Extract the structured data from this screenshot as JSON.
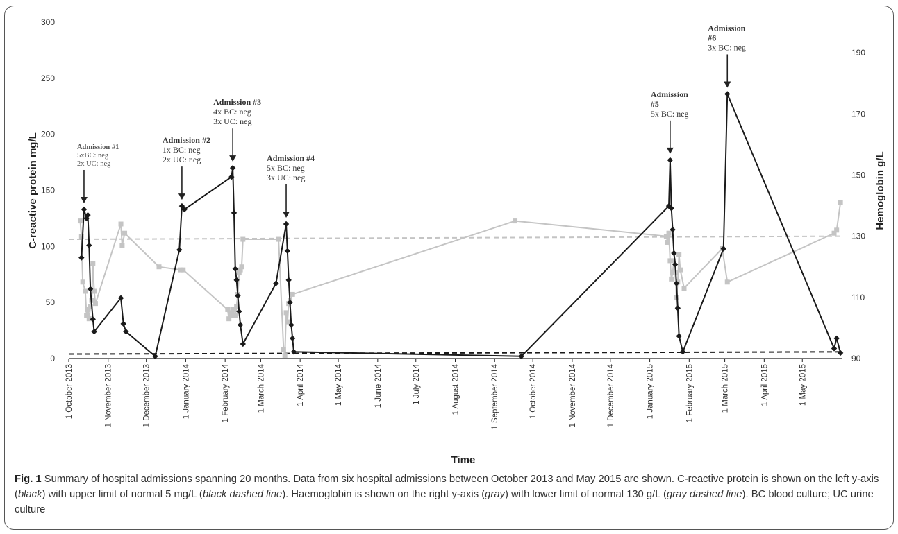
{
  "chart_data": {
    "type": "line",
    "xlabel": "Time",
    "ylabel_left": "C-reactive protein mg/L",
    "ylabel_right": "Hemoglobin g/L",
    "x_range": [
      "2013-10-01",
      "2015-06-01"
    ],
    "x_tick_labels": [
      "1 October 2013",
      "1 November 2013",
      "1 December 2013",
      "1 January 2014",
      "1 February 2014",
      "1 March 2014",
      "1 April 2014",
      "1 May 2014",
      "1 June 2014",
      "1 July 2014",
      "1 August 2014",
      "1 September 2014",
      "1 October 2014",
      "1 November 2014",
      "1 December 2014",
      "1 January 2015",
      "1 February 2015",
      "1 March 2015",
      "1 April 2015",
      "1 May 2015"
    ],
    "x_tick_dates": [
      "2013-10-01",
      "2013-11-01",
      "2013-12-01",
      "2014-01-01",
      "2014-02-01",
      "2014-03-01",
      "2014-04-01",
      "2014-05-01",
      "2014-06-01",
      "2014-07-01",
      "2014-08-01",
      "2014-09-01",
      "2014-10-01",
      "2014-11-01",
      "2014-12-01",
      "2015-01-01",
      "2015-02-01",
      "2015-03-01",
      "2015-04-01",
      "2015-05-01"
    ],
    "y_left": {
      "range": [
        0,
        300
      ],
      "ticks": [
        0,
        50,
        100,
        150,
        200,
        250,
        300
      ]
    },
    "y_right": {
      "range": [
        90,
        200
      ],
      "ticks": [
        90,
        110,
        130,
        150,
        170,
        190
      ]
    },
    "series": [
      {
        "axis": "left",
        "color": "#1a1a1a",
        "marker": "diamond",
        "points": [
          [
            "2013-10-11",
            90
          ],
          [
            "2013-10-13",
            133
          ],
          [
            "2013-10-15",
            125
          ],
          [
            "2013-10-16",
            128
          ],
          [
            "2013-10-17",
            101
          ],
          [
            "2013-10-18",
            62
          ],
          [
            "2013-10-20",
            35
          ],
          [
            "2013-10-21",
            24
          ],
          [
            "2013-11-11",
            54
          ],
          [
            "2013-11-13",
            31
          ],
          [
            "2013-11-15",
            24
          ],
          [
            "2013-12-08",
            2
          ],
          [
            "2013-12-27",
            97
          ],
          [
            "2013-12-29",
            136
          ],
          [
            "2013-12-31",
            133
          ],
          [
            "2014-02-06",
            162
          ],
          [
            "2014-02-07",
            170
          ],
          [
            "2014-02-08",
            130
          ],
          [
            "2014-02-09",
            80
          ],
          [
            "2014-02-10",
            70
          ],
          [
            "2014-02-11",
            56
          ],
          [
            "2014-02-12",
            42
          ],
          [
            "2014-02-13",
            30
          ],
          [
            "2014-02-15",
            13
          ],
          [
            "2014-03-13",
            67
          ],
          [
            "2014-03-21",
            120
          ],
          [
            "2014-03-22",
            96
          ],
          [
            "2014-03-23",
            70
          ],
          [
            "2014-03-24",
            50
          ],
          [
            "2014-03-25",
            30
          ],
          [
            "2014-03-26",
            18
          ],
          [
            "2014-03-27",
            6
          ],
          [
            "2014-09-22",
            2
          ],
          [
            "2015-01-16",
            136
          ],
          [
            "2015-01-17",
            177
          ],
          [
            "2015-01-18",
            134
          ],
          [
            "2015-01-19",
            115
          ],
          [
            "2015-01-20",
            94
          ],
          [
            "2015-01-21",
            84
          ],
          [
            "2015-01-22",
            67
          ],
          [
            "2015-01-23",
            45
          ],
          [
            "2015-01-24",
            20
          ],
          [
            "2015-01-27",
            6
          ],
          [
            "2015-02-28",
            98
          ],
          [
            "2015-03-03",
            236
          ],
          [
            "2015-05-26",
            9
          ],
          [
            "2015-05-28",
            18
          ],
          [
            "2015-05-31",
            5
          ]
        ]
      },
      {
        "axis": "right",
        "color": "#c4c4c4",
        "marker": "square",
        "points": [
          [
            "2013-10-10",
            135
          ],
          [
            "2013-10-11",
            130
          ],
          [
            "2013-10-12",
            115
          ],
          [
            "2013-10-14",
            112
          ],
          [
            "2013-10-15",
            104
          ],
          [
            "2013-10-16",
            106
          ],
          [
            "2013-10-17",
            103
          ],
          [
            "2013-10-18",
            107
          ],
          [
            "2013-10-19",
            109
          ],
          [
            "2013-10-20",
            121
          ],
          [
            "2013-10-21",
            112
          ],
          [
            "2013-10-22",
            108
          ],
          [
            "2013-11-11",
            134
          ],
          [
            "2013-11-12",
            127
          ],
          [
            "2013-11-14",
            131
          ],
          [
            "2013-12-11",
            120
          ],
          [
            "2013-12-28",
            119
          ],
          [
            "2013-12-30",
            119
          ],
          [
            "2014-02-03",
            106
          ],
          [
            "2014-02-04",
            103
          ],
          [
            "2014-02-05",
            105
          ],
          [
            "2014-02-06",
            104
          ],
          [
            "2014-02-07",
            106
          ],
          [
            "2014-02-09",
            104
          ],
          [
            "2014-02-10",
            107
          ],
          [
            "2014-02-11",
            111
          ],
          [
            "2014-02-12",
            118
          ],
          [
            "2014-02-13",
            119
          ],
          [
            "2014-02-14",
            120
          ],
          [
            "2014-02-15",
            129
          ],
          [
            "2014-03-15",
            129
          ],
          [
            "2014-03-19",
            93
          ],
          [
            "2014-03-20",
            91
          ],
          [
            "2014-03-21",
            105
          ],
          [
            "2014-03-22",
            102
          ],
          [
            "2014-03-23",
            108
          ],
          [
            "2014-03-24",
            109
          ],
          [
            "2014-03-26",
            111
          ],
          [
            "2014-09-17",
            135
          ],
          [
            "2015-01-14",
            130
          ],
          [
            "2015-01-15",
            128
          ],
          [
            "2015-01-16",
            131
          ],
          [
            "2015-01-17",
            122
          ],
          [
            "2015-01-18",
            116
          ],
          [
            "2015-01-19",
            118
          ],
          [
            "2015-01-20",
            122
          ],
          [
            "2015-01-21",
            118
          ],
          [
            "2015-01-22",
            110
          ],
          [
            "2015-01-23",
            115
          ],
          [
            "2015-01-24",
            124
          ],
          [
            "2015-01-25",
            119
          ],
          [
            "2015-01-28",
            113
          ],
          [
            "2015-02-27",
            126
          ],
          [
            "2015-03-03",
            115
          ],
          [
            "2015-05-26",
            131
          ],
          [
            "2015-05-28",
            132
          ],
          [
            "2015-05-31",
            141
          ]
        ]
      }
    ],
    "reference_lines": [
      {
        "axis": "left",
        "from": [
          "2013-10-01",
          4
        ],
        "to": [
          "2015-05-31",
          6
        ],
        "color": "#1a1a1a",
        "style": "dashed"
      },
      {
        "axis": "right",
        "from": [
          "2013-10-01",
          129
        ],
        "to": [
          "2015-05-31",
          130
        ],
        "color": "#c4c4c4",
        "style": "dashed"
      }
    ],
    "annotations": [
      {
        "target": [
          "2013-10-13",
          133
        ],
        "lines": [
          "Admission #1",
          "5xBC: neg",
          "2x UC: neg"
        ],
        "muted": true
      },
      {
        "target": [
          "2013-12-29",
          136
        ],
        "lines": [
          "Admission #2",
          "1x BC: neg",
          "2x UC: neg"
        ],
        "muted": false
      },
      {
        "target": [
          "2014-02-07",
          170
        ],
        "lines": [
          "Admission #3",
          "4x BC: neg",
          "3x UC: neg"
        ],
        "muted": false
      },
      {
        "target": [
          "2014-03-21",
          120
        ],
        "lines": [
          "Admission #4",
          "5x BC: neg",
          "3x UC: neg"
        ],
        "muted": false
      },
      {
        "target": [
          "2015-01-17",
          177
        ],
        "lines": [
          "Admission",
          "#5",
          "5x BC: neg"
        ],
        "muted": false
      },
      {
        "target": [
          "2015-03-03",
          236
        ],
        "lines": [
          "Admission",
          "#6",
          "3x BC: neg"
        ],
        "muted": false
      }
    ]
  },
  "caption": {
    "label": "Fig. 1",
    "text1": " Summary of hospital admissions spanning 20 months. Data from six hospital admissions between October 2013 and May 2015 are shown. C-reactive protein is shown on the left y-axis (",
    "black": "black",
    "text2": ") with upper limit of normal 5 mg/L (",
    "black_dashed": "black dashed line",
    "text3": "). Haemoglobin is shown on the right y-axis (",
    "gray": "gray",
    "text4": ") with lower limit of normal 130 g/L (",
    "gray_dashed": "gray dashed line",
    "text5": "). BC blood culture; UC urine culture"
  }
}
